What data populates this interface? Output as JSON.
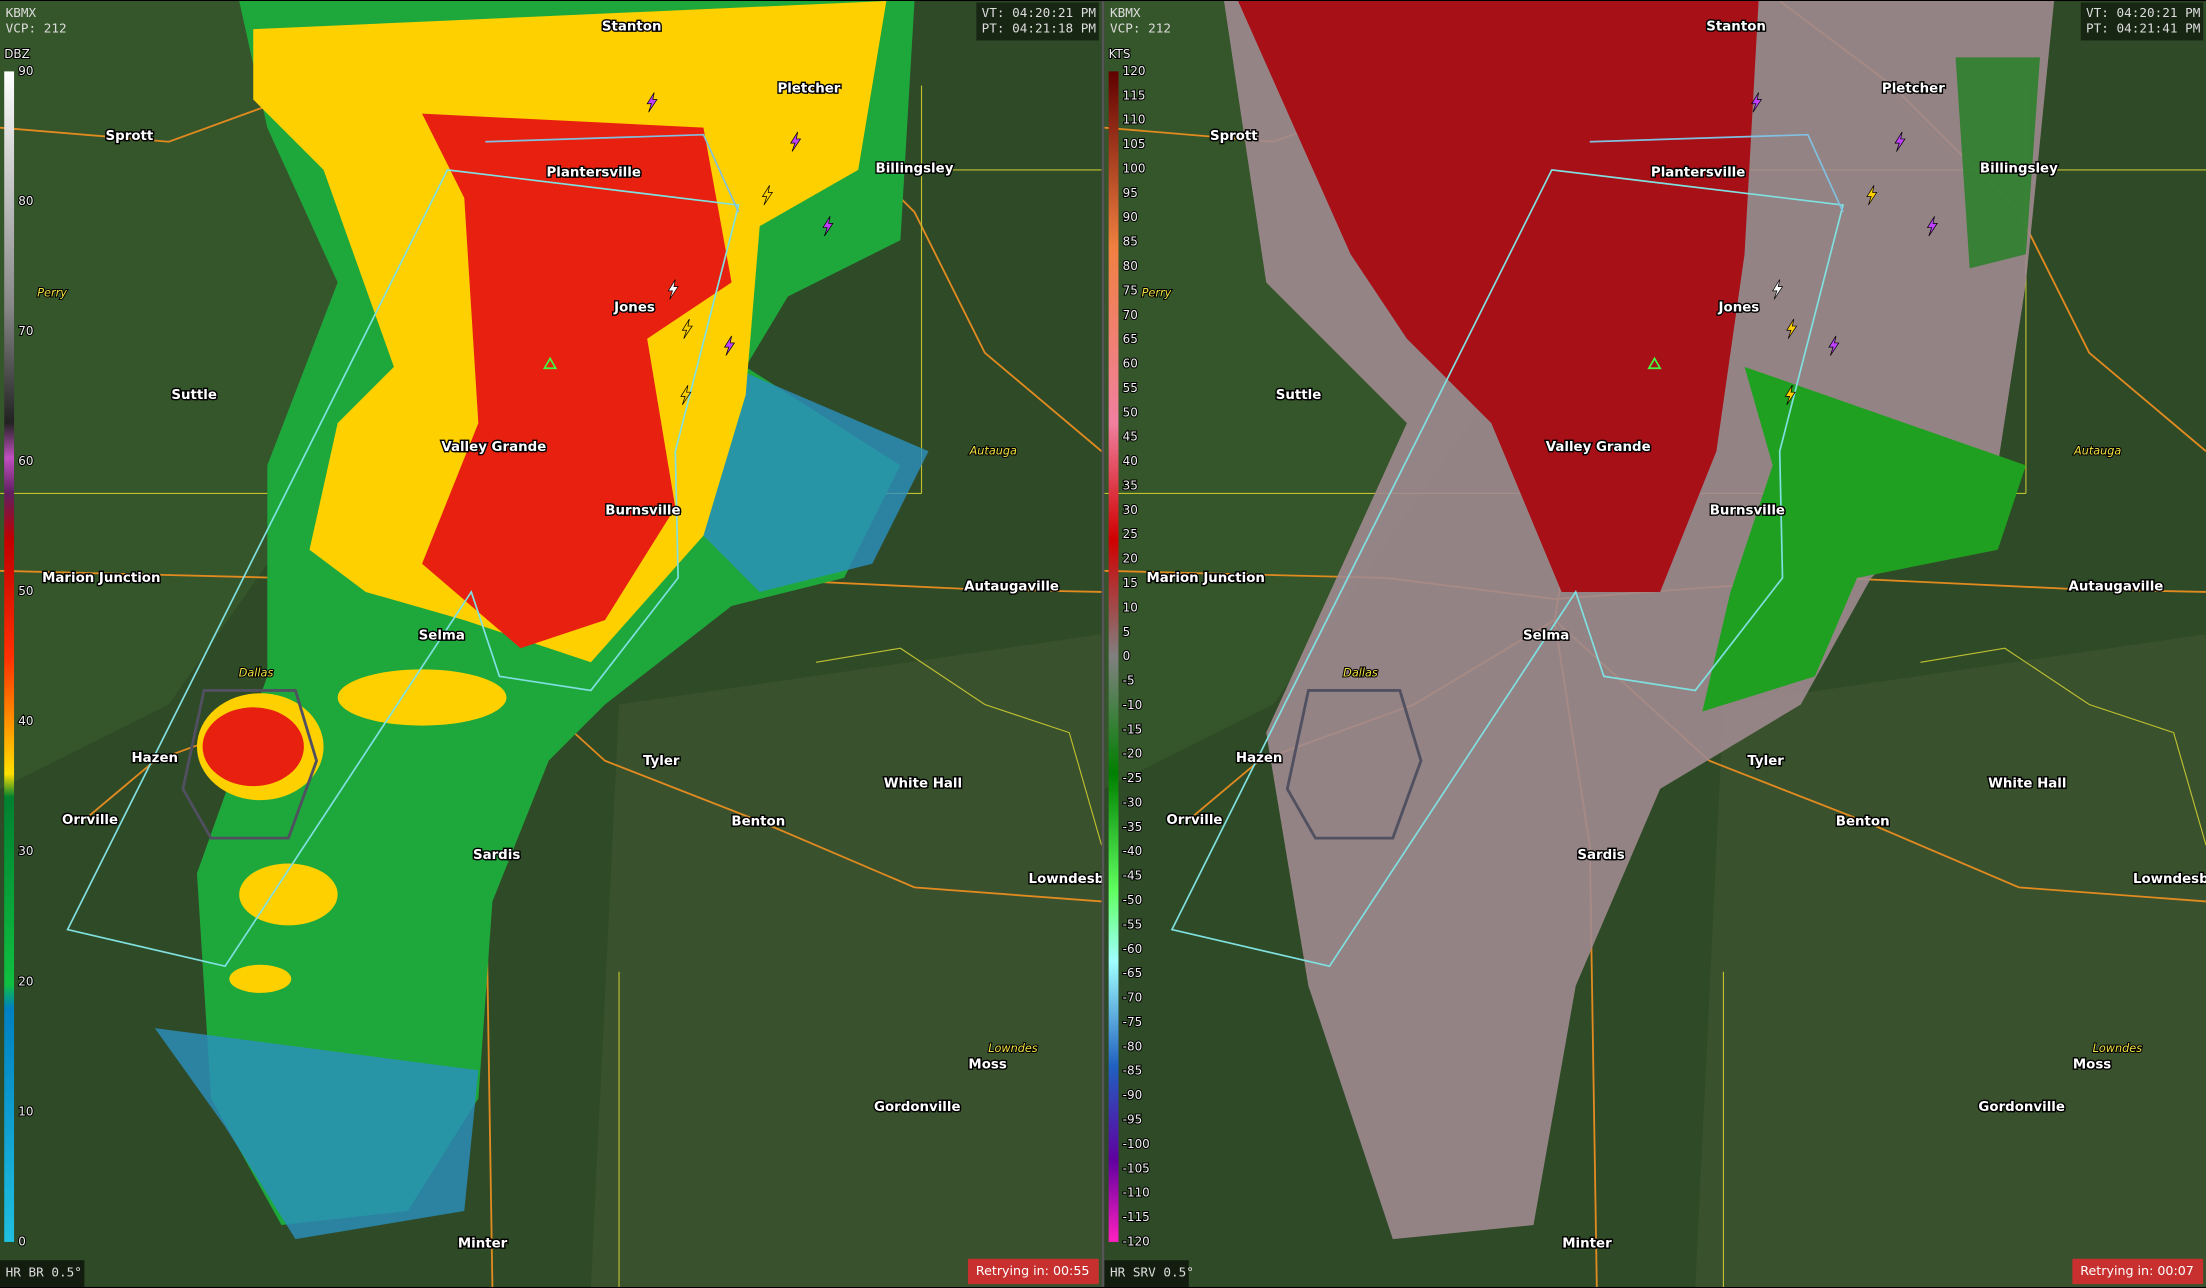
{
  "panels": [
    {
      "station": "KBMX",
      "vcp": "VCP: 212",
      "vt": "VT: 04:20:21 PM",
      "pt": "PT: 04:21:18 PM",
      "scale_unit": "DBZ",
      "scale_ticks": [
        "90",
        "80",
        "70",
        "60",
        "50",
        "40",
        "30",
        "20",
        "10",
        "0"
      ],
      "product": "HR BR 0.5°",
      "retry": "Retrying in: 00:55"
    },
    {
      "station": "KBMX",
      "vcp": "VCP: 212",
      "vt": "VT: 04:20:21 PM",
      "pt": "PT: 04:21:41 PM",
      "scale_unit": "KTS",
      "scale_ticks": [
        "120",
        "115",
        "110",
        "105",
        "100",
        "95",
        "90",
        "85",
        "80",
        "75",
        "70",
        "65",
        "60",
        "55",
        "50",
        "45",
        "40",
        "35",
        "30",
        "25",
        "20",
        "15",
        "10",
        "5",
        "0",
        "-5",
        "-10",
        "-15",
        "-20",
        "-25",
        "-30",
        "-35",
        "-40",
        "-45",
        "-50",
        "-55",
        "-60",
        "-65",
        "-70",
        "-75",
        "-80",
        "-85",
        "-90",
        "-95",
        "-100",
        "-105",
        "-110",
        "-115",
        "-120"
      ],
      "product": "HR SRV 0.5°",
      "retry": "Retrying in: 00:07"
    }
  ],
  "places": [
    "Stanton",
    "Pletcher",
    "Sprott",
    "Billingsley",
    "Plantersville",
    "Jones",
    "Suttle",
    "Valley Grande",
    "Burnsville",
    "Marion Junction",
    "Autaugaville",
    "Selma",
    "Hazen",
    "Tyler",
    "White Hall",
    "Orrville",
    "Benton",
    "Sardis",
    "Lowndesb",
    "Moss",
    "Gordonville",
    "Minter"
  ],
  "counties": [
    "Perry",
    "Autauga",
    "Dallas",
    "Lowndes"
  ]
}
